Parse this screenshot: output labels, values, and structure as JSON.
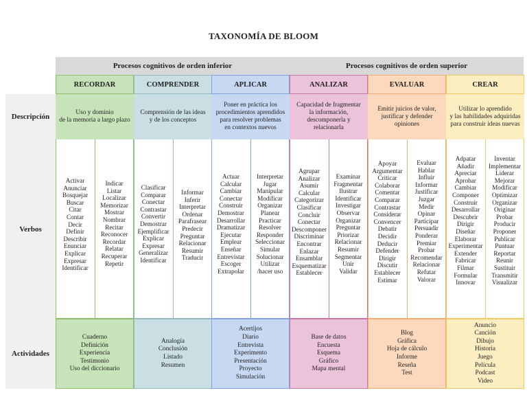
{
  "title": "TAXONOMÍA DE BLOOM",
  "groups": {
    "lower": "Procesos cognitivos de orden inferior",
    "higher": "Procesos cognitivos de orden superior"
  },
  "row_labels": {
    "description": "Descripción",
    "verbs": "Verbos",
    "activities": "Actividades"
  },
  "colors": {
    "recordar": "#c7e3b9",
    "comprender": "#c9dfe4",
    "aplicar": "#c6d8f2",
    "analizar": "#ecc4da",
    "evaluar": "#fcd9bd",
    "crear": "#fdeec2"
  },
  "levels": [
    {
      "name": "RECORDAR",
      "description": "Uso y dominio\nde la memoria a largo plazo",
      "verbs_col1": "Activar\nAnunciar\nBosquejar\nBuscar\nCitar\nContar\nDecir\nDefinir\nDescribir\nEnunciar\nExplicar\nExpresar\nIdentificar",
      "verbs_col2": "Indicar\nListar\nLocalizar\nMemorizar\nMostrar\nNombrar\nRecitar\nReconocer\nRecordar\nRelatar\nRecuperar\nRepetir",
      "activities": "Cuaderno\nDefinición\nExperiencia\nTestimonio\nUso del diccionario"
    },
    {
      "name": "COMPRENDER",
      "description": "Comprensión de las ideas\ny de los conceptos",
      "verbs_col1": "Clasificar\nComparar\nConectar\nContrastar\nConvertir\nDemostrar\nEjemplificar\nExplicar\nExpresar\nGeneralizar\nIdentificar",
      "verbs_col2": "Informar\nInferir\nInterpretar\nOrdenar\nParafrasear\nPredecir\nPreguntar\nRelacionar\nResumir\nTraducir",
      "activities": "Analogía\nConclusión\nListado\nResumen"
    },
    {
      "name": "APLICAR",
      "description": "Poner en práctica los\nprocedimientos aprendidos\npara resolver problemas\nen contextos nuevos",
      "verbs_col1": "Actuar\nCalcular\nCambiar\nConectar\nConstruir\nDemostrar\nDesarrollar\nDramatizar\nEjecutar\nEmplear\nEnseñar\nEntrevistar\nEscoger\nExtrapolar",
      "verbs_col2": "Interpretar\nJugar\nManipular\nModificar\nOrganizar\nPlanear\nPracticar\nResolver\nResponder\nSeleccionar\nSimular\nSolucionar\nUtilizar\n/hacer uso",
      "activities": "Acertijos\nDiario\nEntrevista\nExperimento\nPresentación\nProyecto\nSimulación"
    },
    {
      "name": "ANALIZAR",
      "description": "Capacidad de fragmentar\nla información,\ndescomponerla y relacionarla",
      "verbs_col1": "Agrupar\nAnalizar\nAsumir\nCalcular\nCategorizar\nClasificar\nConcluir\nConectar\nDescomponer\nDiscriminar\nEncontrar\nEnlazar\nEnsamblar\nEsquematizar\nEstablecer",
      "verbs_col2": "Examinar\nFragmentar\nIlustrar\nIdentificar\nInvestigar\nObservar\nOrganizar\nPreguntar\nPriorizar\nRelacionar\nResumir\nSegmentar\nUnir\nValidar",
      "activities": "Base de datos\nEncuesta\nEsquema\nGráfico\nMapa mental"
    },
    {
      "name": "EVALUAR",
      "description": "Emitir juicios de valor,\njustificar y defender opiniones",
      "verbs_col1": "Apoyar\nArgumentar\nCriticar\nColaborar\nComentar\nComparar\nContrastar\nConsiderar\nConvencer\nDebatir\nDecidir\nDeducir\nDefender\nDirigir\nDiscutir\nEstablecer\nEstimar",
      "verbs_col2": "Evaluar\nHablar\nInfluir\nInformar\nJustificar\nJuzgar\nMedir\nOpinar\nParticipar\nPersuadir\nPonderar\nPremiar\nProbar\nRecomendar\nRelacionar\nRefutar\nValorar",
      "activities": "Blog\nGráfica\nHoja de cálculo\nInforme\nReseña\nTest"
    },
    {
      "name": "CREAR",
      "description": "Utilizar lo aprendido\ny las habilidades adquiridas\npara construir ideas nuevas",
      "verbs_col1": "Adpatar\nAñadir\nApreciar\nAprobar\nCambiar\nComponer\nConstruir\nDesarrollar\nDescubrir\nDirigir\nDiseñar\nElaborar\nExperimentar\nExtender\nFabricar\nFilmar\nFormular\nInnovar",
      "verbs_col2": "Inventar\nImplementar\nLiderar\nMejorar\nModificar\nOptimizar\nOrganizar\nOriginar\nProbar\nProducir\nProponer\nPublicar\nPuntuar\nReportar\nReunir\nSustituir\nTransmitir\nVisualizar",
      "activities": "Anuncio\nCanción\nDibujo\nHistoria\nJuego\nPelícula\nPodcast\nVideo"
    }
  ]
}
